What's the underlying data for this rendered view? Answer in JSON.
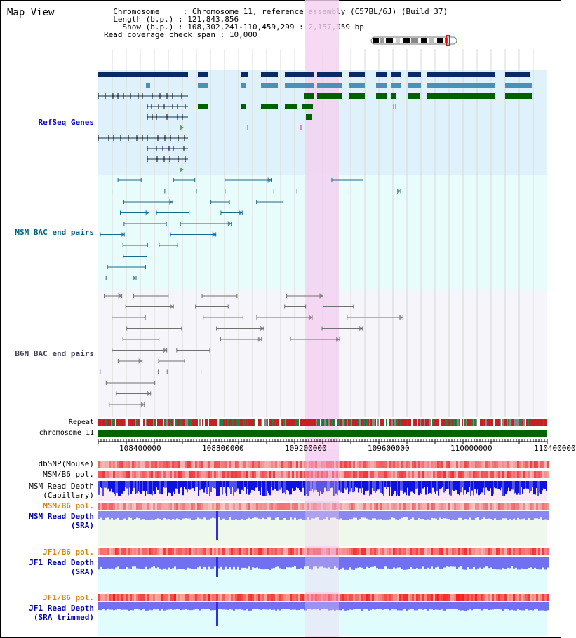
{
  "page": {
    "title": "Map View"
  },
  "info": {
    "chromosome_key": "Chromosome",
    "chromosome_value": "Chromosome 11, reference assembly (C57BL/6J) (Build 37)",
    "length_key": "Length (b.p.)",
    "length_value": "121,843,856",
    "show_key": "Show (b.p.)",
    "show_value": "108,302,241-110,459,299 : 2,157,059 bp",
    "coverage_key": "Read coverage check span",
    "coverage_value": "10,000"
  },
  "tracks": {
    "refseq": "RefSeq Genes",
    "msm_bac": "MSM BAC end pairs",
    "b6n_bac": "B6N BAC end pairs",
    "repeat": "Repeat",
    "chromosome": "chromosome 11",
    "dbsnp": "dbSNP(Mouse)",
    "msm_b6_pol_1": "MSM/B6 pol.",
    "msm_read_depth_cap": "MSM Read Depth",
    "msm_read_depth_cap_sub": "(Capillary)",
    "msm_b6_pol_2": "MSM/B6 pol.",
    "msm_read_depth_sra": "MSM Read Depth",
    "msm_read_depth_sra_sub": "(SRA)",
    "jf1_b6_pol_1": "JF1/B6 pol.",
    "jf1_read_depth_sra": "JF1 Read Depth",
    "jf1_read_depth_sra_sub": "(SRA)",
    "jf1_b6_pol_2": "JF1/B6 pol.",
    "jf1_read_depth_trim": "JF1 Read Depth",
    "jf1_read_depth_trim_sub": "(SRA trimmed)"
  },
  "axis": {
    "ticks": [
      "108400000",
      "108800000",
      "109200000",
      "109600000",
      "110000000",
      "110400000"
    ]
  },
  "colors": {
    "refseq_bg": "#dff2fb",
    "msm_bg": "#e8fcfc",
    "b6n_bg": "#f5f5fa",
    "highlight": "#f4d0f0",
    "refseq_label": "#0000cc",
    "msm_label": "#006080",
    "b6n_label": "#404050",
    "pol_label": "#e08000",
    "depth_label": "#0000aa"
  }
}
